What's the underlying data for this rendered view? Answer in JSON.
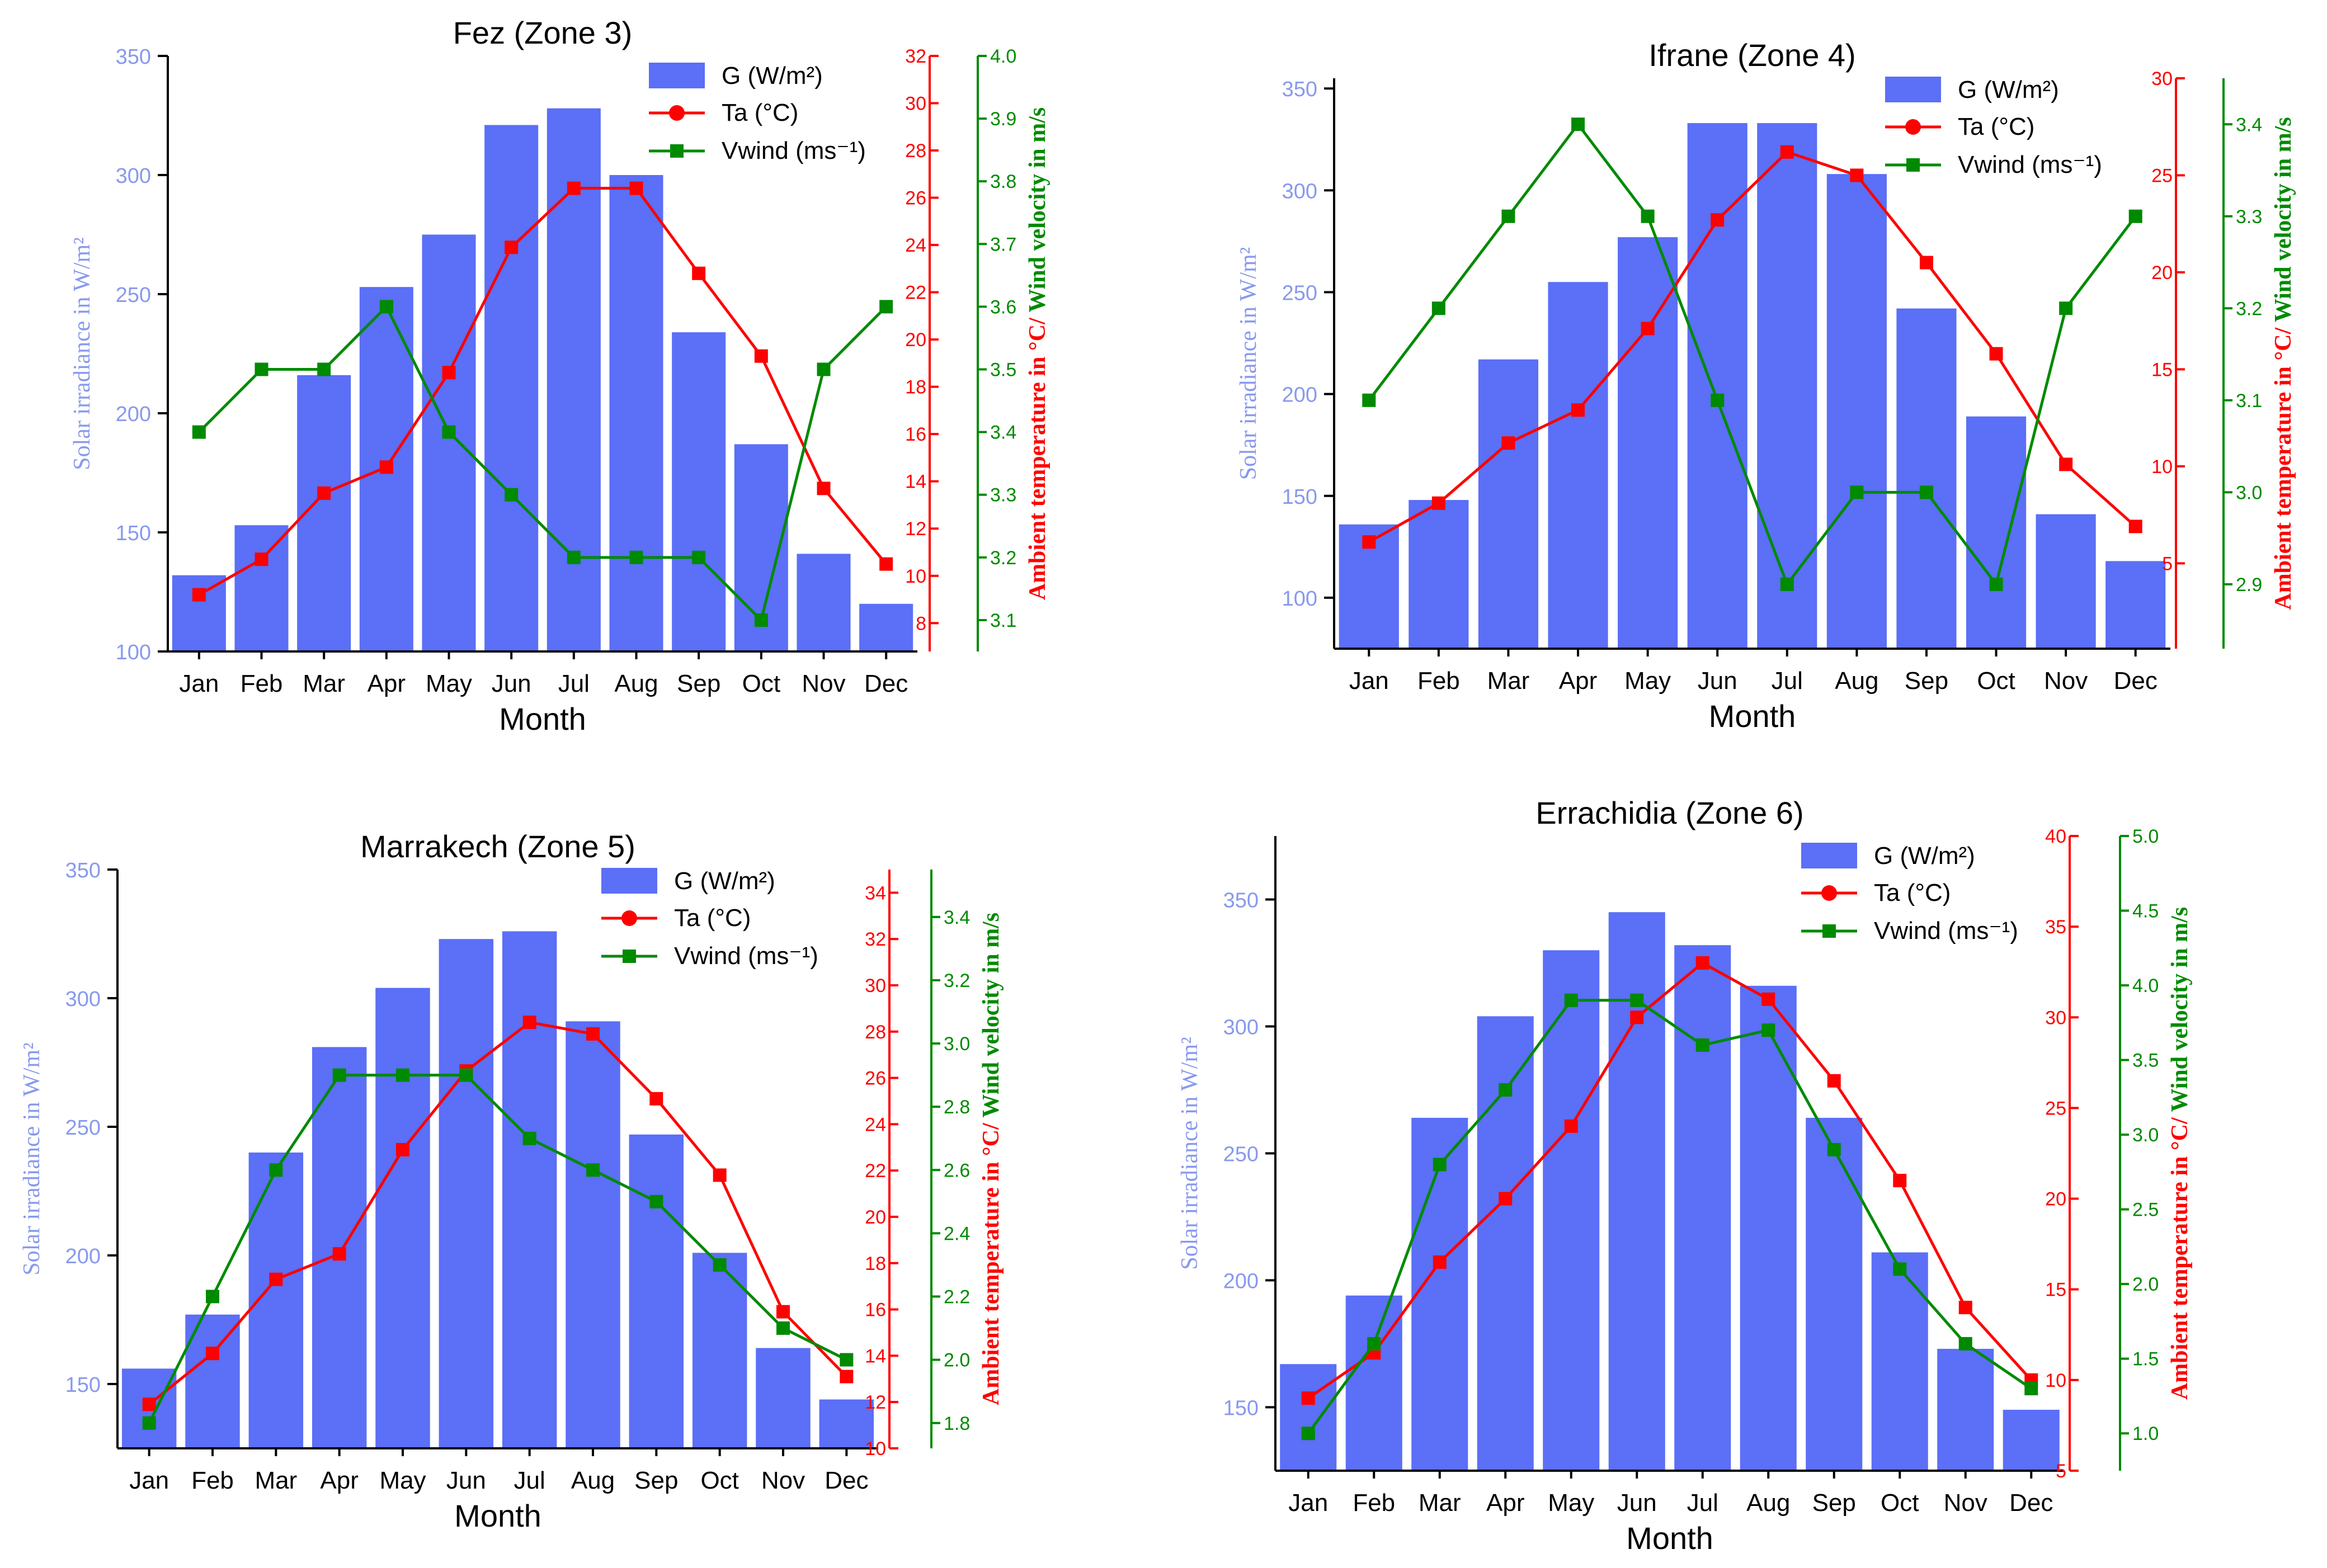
{
  "colors": {
    "bar": "#5b6ff7",
    "ta": "#ff0000",
    "wind": "#008a00",
    "axis": "#000000",
    "left_axis_text": "#8899ee"
  },
  "legend": {
    "g_label": "G (W/m²)",
    "ta_label": "Ta (°C)",
    "wind_label": "Vwind (ms⁻¹)"
  },
  "chart_data": [
    {
      "type": "bar",
      "title": "Fez (Zone 3)",
      "xlabel": "Month",
      "ylabel": "Solar irradiance in W/m²",
      "y2label": "Ambient temperature in °C/ Wind velocity in m/s",
      "categories": [
        "Jan",
        "Feb",
        "Mar",
        "Apr",
        "May",
        "Jun",
        "Jul",
        "Aug",
        "Sep",
        "Oct",
        "Nov",
        "Dec"
      ],
      "y_left": {
        "range": [
          100,
          350
        ],
        "ticks": [
          100,
          150,
          200,
          250,
          300,
          350
        ]
      },
      "y_ta": {
        "range": [
          6.8,
          32
        ],
        "ticks": [
          8,
          10,
          12,
          14,
          16,
          18,
          20,
          22,
          24,
          26,
          28,
          30,
          32
        ]
      },
      "y_wind": {
        "range": [
          3.05,
          4.0
        ],
        "ticks": [
          3.1,
          3.2,
          3.3,
          3.4,
          3.5,
          3.6,
          3.7,
          3.8,
          3.9,
          4.0
        ]
      },
      "series": [
        {
          "name": "G (W/m²)",
          "kind": "bar",
          "axis": "left",
          "values": [
            132,
            153,
            216,
            253,
            275,
            321,
            328,
            300,
            234,
            187,
            141,
            120
          ]
        },
        {
          "name": "Ta (°C)",
          "kind": "line",
          "axis": "ta",
          "values": [
            9.2,
            10.7,
            13.5,
            14.6,
            18.6,
            23.9,
            26.4,
            26.4,
            22.8,
            19.3,
            13.7,
            10.5
          ]
        },
        {
          "name": "Vwind (ms⁻¹)",
          "kind": "line",
          "axis": "wind",
          "values": [
            3.4,
            3.5,
            3.5,
            3.6,
            3.4,
            3.3,
            3.2,
            3.2,
            3.2,
            3.1,
            3.5,
            3.6
          ]
        }
      ]
    },
    {
      "type": "bar",
      "title": "Ifrane (Zone 4)",
      "xlabel": "Month",
      "ylabel": "Solar irradiance in W/m²",
      "y2label": "Ambient temperature in °C/ Wind velocity in m/s",
      "categories": [
        "Jan",
        "Feb",
        "Mar",
        "Apr",
        "May",
        "Jun",
        "Jul",
        "Aug",
        "Sep",
        "Oct",
        "Nov",
        "Dec"
      ],
      "y_left": {
        "range": [
          75,
          355
        ],
        "ticks": [
          100,
          150,
          200,
          250,
          300,
          350
        ]
      },
      "y_ta": {
        "range": [
          0.6,
          30
        ],
        "ticks": [
          5,
          10,
          15,
          20,
          25,
          30
        ]
      },
      "y_wind": {
        "range": [
          2.83,
          3.45
        ],
        "ticks": [
          2.9,
          3.0,
          3.1,
          3.2,
          3.3,
          3.4
        ]
      },
      "series": [
        {
          "name": "G (W/m²)",
          "kind": "bar",
          "axis": "left",
          "values": [
            136,
            148,
            217,
            255,
            277,
            333,
            333,
            308,
            242,
            189,
            141,
            118
          ]
        },
        {
          "name": "Ta (°C)",
          "kind": "line",
          "axis": "ta",
          "values": [
            6.1,
            8.1,
            11.2,
            12.9,
            17.1,
            22.7,
            26.2,
            25.0,
            20.5,
            15.8,
            10.1,
            6.9
          ]
        },
        {
          "name": "Vwind (ms⁻¹)",
          "kind": "line",
          "axis": "wind",
          "values": [
            3.1,
            3.2,
            3.3,
            3.4,
            3.3,
            3.1,
            2.9,
            3.0,
            3.0,
            2.9,
            3.2,
            3.3
          ]
        }
      ]
    },
    {
      "type": "bar",
      "title": "Marrakech (Zone 5)",
      "xlabel": "Month",
      "ylabel": "Solar irradiance in W/m²",
      "y2label": "Ambient temperature in °C/ Wind velocity in m/s",
      "categories": [
        "Jan",
        "Feb",
        "Mar",
        "Apr",
        "May",
        "Jun",
        "Jul",
        "Aug",
        "Sep",
        "Oct",
        "Nov",
        "Dec"
      ],
      "y_left": {
        "range": [
          125,
          350
        ],
        "ticks": [
          150,
          200,
          250,
          300,
          350
        ]
      },
      "y_ta": {
        "range": [
          10,
          35
        ],
        "ticks": [
          10,
          12,
          14,
          16,
          18,
          20,
          22,
          24,
          26,
          28,
          30,
          32,
          34
        ]
      },
      "y_wind": {
        "range": [
          1.72,
          3.55
        ],
        "ticks": [
          1.8,
          2.0,
          2.2,
          2.4,
          2.6,
          2.8,
          3.0,
          3.2,
          3.4
        ]
      },
      "series": [
        {
          "name": "G (W/m²)",
          "kind": "bar",
          "axis": "left",
          "values": [
            156,
            177,
            240,
            281,
            304,
            323,
            326,
            291,
            247,
            201,
            164,
            144
          ]
        },
        {
          "name": "Ta (°C)",
          "kind": "line",
          "axis": "ta",
          "values": [
            11.9,
            14.1,
            17.3,
            18.4,
            22.9,
            26.3,
            28.4,
            27.9,
            25.1,
            21.8,
            15.9,
            13.1
          ]
        },
        {
          "name": "Vwind (ms⁻¹)",
          "kind": "line",
          "axis": "wind",
          "values": [
            1.8,
            2.2,
            2.6,
            2.9,
            2.9,
            2.9,
            2.7,
            2.6,
            2.5,
            2.3,
            2.1,
            2.0
          ]
        }
      ]
    },
    {
      "type": "bar",
      "title": "Errachidia (Zone 6)",
      "xlabel": "Month",
      "ylabel": "Solar irradiance in W/m²",
      "y2label": "Ambient temperature in °C/ Wind velocity in m/s",
      "categories": [
        "Jan",
        "Feb",
        "Mar",
        "Apr",
        "May",
        "Jun",
        "Jul",
        "Aug",
        "Sep",
        "Oct",
        "Nov",
        "Dec"
      ],
      "y_left": {
        "range": [
          125,
          375
        ],
        "ticks": [
          150,
          200,
          250,
          300,
          350
        ]
      },
      "y_ta": {
        "range": [
          5,
          40
        ],
        "ticks": [
          5,
          10,
          15,
          20,
          25,
          30,
          35,
          40
        ]
      },
      "y_wind": {
        "range": [
          0.75,
          5.0
        ],
        "ticks": [
          1.0,
          1.5,
          2.0,
          2.5,
          3.0,
          3.5,
          4.0,
          4.5,
          5.0
        ]
      },
      "series": [
        {
          "name": "G (W/m²)",
          "kind": "bar",
          "axis": "left",
          "values": [
            167,
            194,
            264,
            304,
            330,
            345,
            332,
            316,
            264,
            211,
            173,
            149
          ]
        },
        {
          "name": "Ta (°C)",
          "kind": "line",
          "axis": "ta",
          "values": [
            9.0,
            11.5,
            16.5,
            20.0,
            24.0,
            30.0,
            33.0,
            31.0,
            26.5,
            21.0,
            14.0,
            10.0
          ]
        },
        {
          "name": "Vwind (ms⁻¹)",
          "kind": "line",
          "axis": "wind",
          "values": [
            1.0,
            1.6,
            2.8,
            3.3,
            3.9,
            3.9,
            3.6,
            3.7,
            2.9,
            2.1,
            1.6,
            1.3
          ]
        }
      ]
    }
  ]
}
